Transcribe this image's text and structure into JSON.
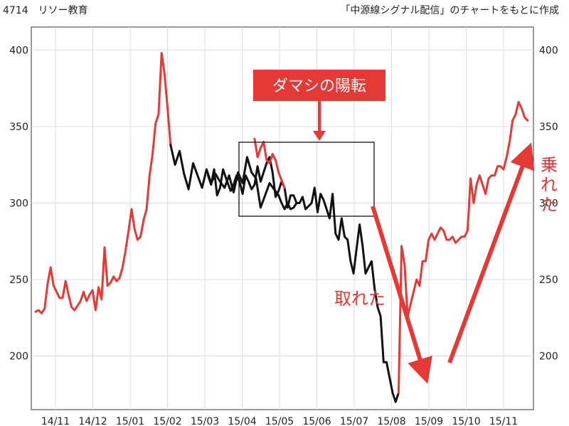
{
  "header": {
    "ticker_title": "4714　リソー教育",
    "source_note": "「中源線シグナル配信」のチャートをもとに作成"
  },
  "chart_data": {
    "type": "line",
    "x_tick_labels": [
      "14/11",
      "14/12",
      "15/01",
      "15/02",
      "15/03",
      "15/04",
      "15/05",
      "15/06",
      "15/07",
      "15/08",
      "15/09",
      "15/10",
      "15/11"
    ],
    "y_ticks": [
      200,
      250,
      300,
      350,
      400
    ],
    "ylim": [
      165,
      415
    ],
    "grid": true,
    "series": [
      {
        "signal": "up",
        "color": "#e53935",
        "x": [
          0,
          0.2,
          0.4,
          0.6,
          0.8,
          1.0,
          1.2,
          1.4,
          1.6,
          1.8,
          2.0,
          2.2,
          2.4,
          2.6,
          2.8,
          3.0,
          3.2,
          3.4,
          3.6,
          3.8,
          4.0,
          4.2,
          4.4,
          4.6,
          4.8,
          5.0,
          5.2,
          5.4,
          5.6,
          5.8,
          6.0,
          6.2,
          6.4,
          6.6,
          6.8,
          7.0,
          7.2,
          7.4,
          7.6,
          7.8,
          8.0,
          8.2,
          8.4,
          8.6,
          8.8,
          9.0
        ],
        "y": [
          229,
          230,
          228,
          231,
          247,
          258,
          246,
          242,
          238,
          238,
          249,
          240,
          232,
          230,
          233,
          236,
          242,
          236,
          240,
          243,
          230,
          245,
          237,
          271,
          246,
          248,
          252,
          249,
          251,
          258,
          269,
          282,
          296,
          283,
          276,
          278,
          289,
          296,
          318,
          332,
          352,
          358,
          398,
          384,
          362,
          338
        ]
      },
      {
        "signal": "down",
        "color": "#111111",
        "x": [
          9.0,
          9.3,
          9.6,
          9.9,
          10.2,
          10.5,
          10.8,
          11.1,
          11.4,
          11.7,
          12.0,
          12.3,
          12.6,
          12.9,
          13.2,
          13.5,
          13.8,
          14.1,
          14.4,
          14.7,
          15.0,
          15.3,
          15.6,
          15.9,
          16.2,
          16.4,
          16.6,
          16.8,
          17.0,
          17.2,
          17.4
        ],
        "y": [
          338,
          325,
          334,
          319,
          309,
          326,
          318,
          310,
          322,
          313,
          319,
          314,
          310,
          318,
          307,
          320,
          313,
          330,
          320,
          316,
          297,
          305,
          313,
          309,
          305,
          300,
          296,
          300,
          296,
          297,
          300
        ]
      },
      {
        "signal": "down",
        "color": "#111111",
        "x": [
          11.5,
          11.7,
          11.9,
          12.1,
          12.3,
          12.5,
          12.7,
          13.0,
          13.2,
          13.4,
          13.6,
          13.8,
          14.0,
          14.2,
          14.4,
          14.6,
          14.8,
          15.0,
          15.2,
          15.4,
          15.6,
          15.8,
          16.0,
          16.2,
          16.4,
          16.6,
          16.8,
          17.0,
          17.2,
          17.4,
          17.6,
          17.8,
          18.0,
          18.2,
          18.4,
          18.6,
          18.8,
          19.0,
          19.2,
          19.4,
          19.6,
          19.8,
          20.0,
          20.2,
          20.4,
          20.6,
          20.8,
          21.0,
          21.2,
          21.4,
          21.6,
          21.8,
          22.0,
          22.2,
          22.4,
          22.6,
          22.8,
          23.0,
          23.2,
          23.4,
          23.6,
          23.8,
          24.0,
          24.2
        ],
        "y": [
          318,
          312,
          322,
          305,
          310,
          322,
          316,
          308,
          312,
          318,
          314,
          306,
          318,
          314,
          309,
          312,
          324,
          314,
          320,
          326,
          330,
          320,
          304,
          308,
          314,
          310,
          297,
          305,
          305,
          300,
          300,
          304,
          296,
          298,
          300,
          310,
          294,
          306,
          302,
          296,
          290,
          306,
          280,
          276,
          290,
          278,
          276,
          262,
          254,
          270,
          286,
          272,
          254,
          258,
          262,
          244,
          232,
          226,
          196,
          196,
          186,
          176,
          170,
          176
        ]
      },
      {
        "signal": "up",
        "color": "#e53935",
        "x": [
          14.6,
          14.8,
          15.0,
          15.2,
          15.4,
          15.6,
          15.8,
          16.0,
          16.2,
          16.4,
          16.6
        ],
        "y": [
          342,
          330,
          336,
          340,
          328,
          326,
          332,
          328,
          320,
          315,
          310
        ]
      },
      {
        "signal": "up",
        "color": "#e53935",
        "x": [
          24.2,
          24.4,
          24.6,
          24.8,
          25.0,
          25.2,
          25.4,
          25.6,
          25.8,
          26.0,
          26.2,
          26.4,
          26.6,
          26.8,
          27.0,
          27.2,
          27.4,
          27.6,
          27.8,
          28.0,
          28.2,
          28.4,
          28.6,
          28.8,
          29.0,
          29.2,
          29.4,
          29.6,
          29.8,
          30.0,
          30.2,
          30.4,
          30.6,
          30.8,
          31.0,
          31.2,
          31.4,
          31.6,
          31.8,
          32.0,
          32.2,
          32.4,
          32.6,
          32.8
        ],
        "y": [
          176,
          272,
          260,
          226,
          234,
          242,
          250,
          246,
          262,
          262,
          276,
          280,
          276,
          280,
          284,
          282,
          276,
          276,
          278,
          274,
          276,
          278,
          278,
          282,
          316,
          300,
          312,
          318,
          312,
          306,
          316,
          318,
          318,
          324,
          324,
          322,
          330,
          340,
          354,
          358,
          366,
          362,
          356,
          354
        ]
      }
    ]
  },
  "annotations": {
    "callout": "ダマシの陽転",
    "left_label": "取れた",
    "right_label": "乗れた"
  }
}
